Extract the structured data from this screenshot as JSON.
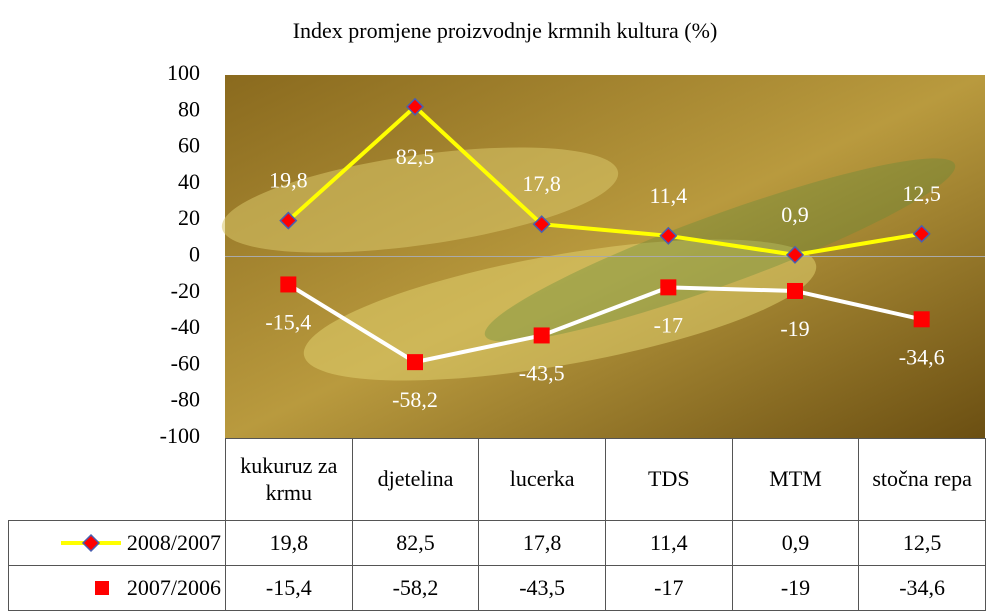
{
  "chart_data": {
    "type": "line",
    "title": "Index promjene proizvodnje krmnih kultura (%)",
    "categories": [
      "kukuruz za krmu",
      "djetelina",
      "lucerka",
      "TDS",
      "MTM",
      "stočna repa"
    ],
    "series": [
      {
        "name": "2008/2007",
        "color": "#ffff00",
        "marker_color": "#ff0000",
        "marker": "diamond",
        "values": [
          19.8,
          82.5,
          17.8,
          11.4,
          0.9,
          12.5
        ],
        "value_labels": [
          "19,8",
          "82,5",
          "17,8",
          "11,4",
          "0,9",
          "12,5"
        ]
      },
      {
        "name": "2007/2006",
        "color": "#ffffff",
        "marker_color": "#ff0000",
        "marker": "square",
        "values": [
          -15.4,
          -58.2,
          -43.5,
          -17,
          -19,
          -34.6
        ],
        "value_labels": [
          "-15,4",
          "-58,2",
          "-43,5",
          "-17",
          "-19",
          "-34,6"
        ]
      }
    ],
    "ylim": [
      -100,
      100
    ],
    "yticks": [
      -100,
      -80,
      -60,
      -40,
      -20,
      0,
      20,
      40,
      60,
      80,
      100
    ]
  }
}
